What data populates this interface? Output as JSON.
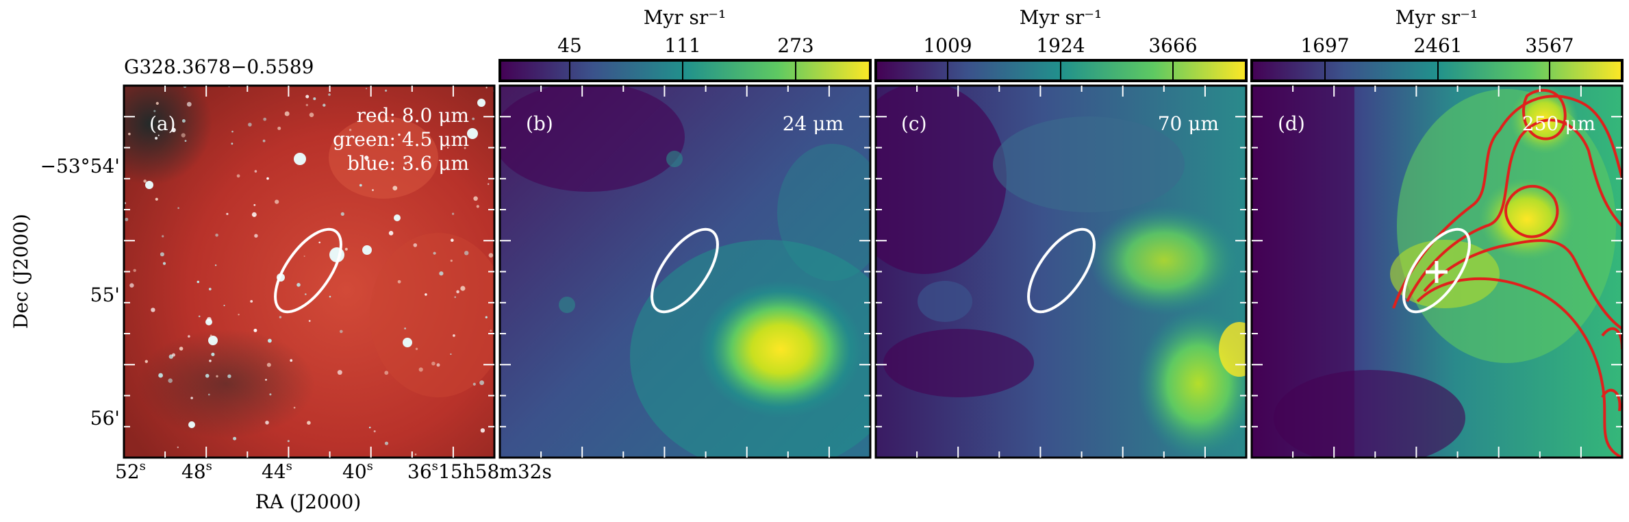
{
  "source_name": "G328.3678−0.5589",
  "axis": {
    "xlabel": "RA (J2000)",
    "ylabel": "Dec (J2000)",
    "x_ticks": [
      "52",
      "48",
      "44",
      "40",
      "36"
    ],
    "x_tick_suffix": "s",
    "x_last": "15h58m32s",
    "y_ticks": [
      "−53°54'",
      "55'",
      "56'"
    ]
  },
  "panels": [
    {
      "id": "a",
      "label": "(a)",
      "legend": [
        "red: 8.0 μm",
        "green: 4.5 μm",
        "blue: 3.6 μm"
      ],
      "colors": {
        "red": "#b8322a",
        "green": "#2a9d6a",
        "blue": "#9fd4dc"
      }
    },
    {
      "id": "b",
      "label": "(b)",
      "band": "24 μm",
      "colorbar_unit": "Myr sr⁻¹",
      "colorbar_ticks": [
        "45",
        "111",
        "273"
      ]
    },
    {
      "id": "c",
      "label": "(c)",
      "band": "70 μm",
      "colorbar_unit": "Myr sr⁻¹",
      "colorbar_ticks": [
        "1009",
        "1924",
        "3666"
      ]
    },
    {
      "id": "d",
      "label": "(d)",
      "band": "250 μm",
      "colorbar_unit": "Myr sr⁻¹",
      "colorbar_ticks": [
        "1697",
        "2461",
        "3567"
      ],
      "contour_color": "#e0201c"
    }
  ],
  "colormap": [
    "#440154",
    "#3b528b",
    "#21918c",
    "#5ec962",
    "#fde725"
  ],
  "ellipse_color": "#ffffff",
  "marker": "+"
}
